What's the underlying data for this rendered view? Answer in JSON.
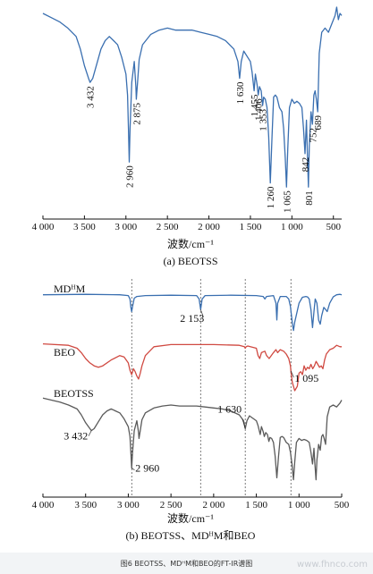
{
  "figure_caption": "图6 BEOTSS、MDᴴM和BEO的FT-IR谱图",
  "watermark": "www.fhnco.com",
  "colors": {
    "MDHM": "#3a6fb0",
    "BEO": "#d04a42",
    "BEOTSS": "#5a5a5a",
    "BEOTSS_a": "#3a6fb0",
    "axis": "#111111",
    "guide": "#444444"
  },
  "chart_data": [
    {
      "type": "line",
      "panel_label": "(a) BEOTSS",
      "xlabel": "波数/cm⁻¹",
      "xlim": [
        4000,
        400
      ],
      "xticks": [
        4000,
        3500,
        3000,
        2500,
        2000,
        1500,
        1000,
        500
      ],
      "xtick_labels": [
        "4 000",
        "3 500",
        "3 000",
        "2 500",
        "2 000",
        "1 500",
        "1 000",
        "500"
      ],
      "grid": false,
      "legend": "none",
      "series": [
        {
          "x": [
            4000,
            3900,
            3800,
            3700,
            3600,
            3550,
            3500,
            3450,
            3432,
            3400,
            3350,
            3300,
            3250,
            3200,
            3150,
            3100,
            3050,
            3000,
            2980,
            2970,
            2960,
            2950,
            2930,
            2900,
            2880,
            2875,
            2860,
            2840,
            2800,
            2700,
            2600,
            2500,
            2400,
            2300,
            2200,
            2100,
            2000,
            1900,
            1800,
            1700,
            1650,
            1630,
            1610,
            1580,
            1500,
            1480,
            1455,
            1440,
            1420,
            1406,
            1390,
            1370,
            1353,
            1340,
            1320,
            1300,
            1280,
            1260,
            1240,
            1220,
            1200,
            1180,
            1150,
            1120,
            1100,
            1080,
            1065,
            1050,
            1030,
            1000,
            970,
            940,
            910,
            880,
            860,
            842,
            825,
            815,
            801,
            790,
            770,
            752,
            735,
            720,
            705,
            689,
            670,
            640,
            600,
            560,
            520,
            480,
            460,
            440,
            420,
            400
          ],
          "y": [
            97,
            95,
            93,
            90,
            86,
            80,
            72,
            66,
            64,
            66,
            73,
            80,
            84,
            86,
            84,
            82,
            76,
            68,
            58,
            42,
            26,
            42,
            64,
            74,
            62,
            56,
            64,
            75,
            82,
            87,
            89,
            90,
            89,
            89,
            89,
            88,
            87,
            86,
            84,
            80,
            74,
            66,
            74,
            79,
            74,
            69,
            60,
            68,
            63,
            58,
            62,
            60,
            53,
            57,
            56,
            52,
            38,
            16,
            38,
            57,
            58,
            57,
            52,
            50,
            42,
            28,
            14,
            32,
            52,
            56,
            54,
            55,
            54,
            52,
            42,
            30,
            46,
            32,
            14,
            34,
            50,
            44,
            58,
            60,
            56,
            50,
            78,
            88,
            90,
            88,
            92,
            96,
            100,
            94,
            97,
            96
          ]
        }
      ],
      "annotations": [
        {
          "text": "3 432",
          "x": 3432
        },
        {
          "text": "2 960",
          "x": 2960
        },
        {
          "text": "2 875",
          "x": 2875
        },
        {
          "text": "1 630",
          "x": 1630
        },
        {
          "text": "1 455",
          "x": 1455
        },
        {
          "text": "1 406",
          "x": 1406
        },
        {
          "text": "1 353",
          "x": 1353
        },
        {
          "text": "1 260",
          "x": 1260
        },
        {
          "text": "1 065",
          "x": 1065
        },
        {
          "text": "842",
          "x": 842
        },
        {
          "text": "801",
          "x": 801
        },
        {
          "text": "752",
          "x": 752
        },
        {
          "text": "689",
          "x": 689
        }
      ]
    },
    {
      "type": "line",
      "panel_label": "(b) BEOTSS、MDᴴM和BEO",
      "xlabel": "波数/cm⁻¹",
      "xlim": [
        4000,
        500
      ],
      "xticks": [
        4000,
        3500,
        3000,
        2500,
        2000,
        1500,
        1000,
        500
      ],
      "xtick_labels": [
        "4 000",
        "3 500",
        "3 000",
        "2 500",
        "2 000",
        "1 500",
        "1 000",
        "500"
      ],
      "reference_lines": [
        2960,
        2153,
        1630,
        1095
      ],
      "grid": false,
      "legend": "inline labels",
      "series": [
        {
          "name": "MDᴴM",
          "x": [
            4000,
            3500,
            3100,
            3000,
            2980,
            2970,
            2960,
            2950,
            2930,
            2900,
            2800,
            2500,
            2200,
            2170,
            2153,
            2135,
            2100,
            1800,
            1500,
            1420,
            1400,
            1380,
            1300,
            1270,
            1260,
            1250,
            1220,
            1150,
            1120,
            1100,
            1080,
            1065,
            1050,
            1000,
            960,
            920,
            900,
            880,
            860,
            842,
            825,
            810,
            790,
            770,
            752,
            735,
            710,
            689,
            670,
            640,
            600,
            560,
            520,
            500
          ],
          "y": [
            90,
            91,
            90,
            88,
            80,
            60,
            50,
            62,
            82,
            86,
            88,
            89,
            88,
            80,
            55,
            80,
            88,
            89,
            88,
            86,
            80,
            86,
            88,
            70,
            30,
            70,
            86,
            86,
            80,
            62,
            25,
            5,
            25,
            70,
            84,
            86,
            85,
            80,
            55,
            12,
            50,
            80,
            70,
            30,
            20,
            40,
            60,
            55,
            50,
            70,
            85,
            90,
            91,
            90
          ]
        },
        {
          "name": "BEO",
          "x": [
            4000,
            3700,
            3600,
            3550,
            3500,
            3450,
            3400,
            3350,
            3300,
            3200,
            3100,
            3050,
            3000,
            2980,
            2960,
            2940,
            2920,
            2900,
            2880,
            2860,
            2840,
            2800,
            2700,
            2500,
            2200,
            2000,
            1700,
            1640,
            1630,
            1620,
            1600,
            1500,
            1480,
            1460,
            1440,
            1400,
            1380,
            1350,
            1300,
            1270,
            1250,
            1220,
            1180,
            1150,
            1120,
            1100,
            1095,
            1080,
            1050,
            1020,
            1000,
            980,
            960,
            940,
            920,
            900,
            880,
            860,
            840,
            820,
            800,
            780,
            760,
            740,
            720,
            700,
            680,
            640,
            600,
            560,
            520,
            500
          ],
          "y": [
            92,
            90,
            86,
            80,
            72,
            66,
            62,
            60,
            62,
            70,
            76,
            74,
            66,
            56,
            50,
            58,
            54,
            48,
            44,
            52,
            62,
            76,
            88,
            91,
            91,
            91,
            90,
            88,
            86,
            88,
            89,
            86,
            76,
            72,
            80,
            82,
            76,
            72,
            80,
            84,
            80,
            84,
            82,
            78,
            72,
            62,
            55,
            40,
            28,
            34,
            52,
            54,
            50,
            62,
            56,
            60,
            58,
            64,
            58,
            62,
            68,
            64,
            60,
            62,
            58,
            70,
            78,
            84,
            86,
            90,
            88,
            88
          ]
        },
        {
          "name": "BEOTSS",
          "x": [
            4000,
            3900,
            3800,
            3700,
            3600,
            3550,
            3500,
            3450,
            3432,
            3400,
            3350,
            3300,
            3250,
            3200,
            3150,
            3100,
            3050,
            3000,
            2980,
            2970,
            2960,
            2950,
            2930,
            2900,
            2880,
            2875,
            2860,
            2840,
            2800,
            2700,
            2600,
            2500,
            2400,
            2300,
            2200,
            2100,
            2000,
            1900,
            1800,
            1700,
            1650,
            1630,
            1610,
            1580,
            1500,
            1480,
            1455,
            1440,
            1420,
            1406,
            1390,
            1370,
            1353,
            1340,
            1320,
            1300,
            1280,
            1260,
            1240,
            1220,
            1200,
            1180,
            1150,
            1120,
            1100,
            1080,
            1065,
            1050,
            1030,
            1000,
            970,
            940,
            910,
            880,
            860,
            842,
            825,
            815,
            801,
            790,
            770,
            752,
            735,
            720,
            705,
            689,
            670,
            640,
            600,
            560,
            520,
            500
          ],
          "y": [
            97,
            95,
            93,
            90,
            86,
            80,
            72,
            66,
            64,
            66,
            73,
            80,
            84,
            86,
            84,
            82,
            76,
            68,
            58,
            42,
            26,
            42,
            64,
            74,
            62,
            56,
            64,
            75,
            82,
            87,
            89,
            90,
            89,
            89,
            89,
            88,
            87,
            86,
            84,
            80,
            74,
            66,
            74,
            79,
            74,
            69,
            60,
            68,
            63,
            58,
            62,
            60,
            53,
            57,
            56,
            52,
            38,
            16,
            38,
            57,
            58,
            57,
            52,
            50,
            42,
            28,
            14,
            32,
            52,
            56,
            54,
            55,
            54,
            52,
            42,
            30,
            46,
            32,
            14,
            34,
            50,
            44,
            58,
            60,
            56,
            50,
            78,
            88,
            90,
            88,
            92,
            95
          ]
        }
      ],
      "annotations": [
        {
          "text": "2 153",
          "x": 2153
        },
        {
          "text": "1 095",
          "x": 1095
        },
        {
          "text": "1 630",
          "x": 1630
        },
        {
          "text": "3 432",
          "x": 3432
        },
        {
          "text": "2 960",
          "x": 2960
        }
      ]
    }
  ]
}
